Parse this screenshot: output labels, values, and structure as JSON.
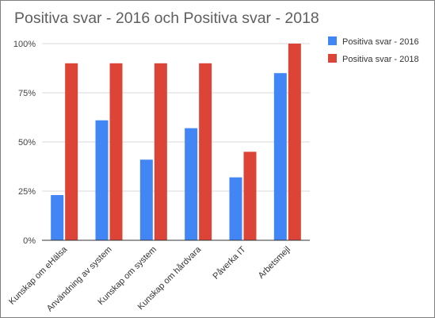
{
  "chart_data": {
    "type": "bar",
    "title": "Positiva svar - 2016 och Positiva svar - 2018",
    "xlabel": "",
    "ylabel": "",
    "categories": [
      "Kunskap om eHälsa",
      "Användning av system",
      "Kunskap om system",
      "Kunskap om hårdvara",
      "Påverka IT",
      "Arbetsmejl"
    ],
    "series": [
      {
        "name": "Positiva svar - 2016",
        "color": "#4285f4",
        "values": [
          23,
          61,
          41,
          57,
          32,
          85
        ]
      },
      {
        "name": "Positiva svar - 2018",
        "color": "#db4437",
        "values": [
          90,
          90,
          90,
          90,
          45,
          100
        ]
      }
    ],
    "ylim": [
      0,
      100
    ],
    "yticks": [
      0,
      25,
      50,
      75,
      100
    ],
    "ytick_labels": [
      "0%",
      "25%",
      "50%",
      "75%",
      "100%"
    ],
    "grid": true,
    "legend_position": "right"
  }
}
